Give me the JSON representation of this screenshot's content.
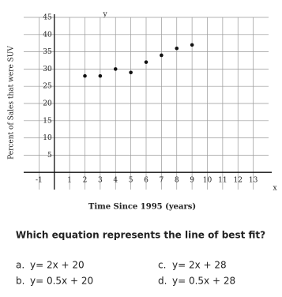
{
  "chart_data": {
    "type": "scatter",
    "x_label": "Time Since 1995 (years)",
    "y_label": "Percent of Sales that were SUV",
    "x_axis_name": "x",
    "y_axis_name": "y",
    "x": [
      2,
      3,
      4,
      5,
      6,
      7,
      8,
      9
    ],
    "values": [
      28,
      28,
      30,
      29,
      32,
      34,
      36,
      37
    ],
    "color": "#111",
    "xlim": [
      -2,
      14
    ],
    "ylim": [
      -5,
      45
    ],
    "xticks": [
      -1,
      1,
      2,
      3,
      4,
      5,
      6,
      7,
      8,
      9,
      10,
      11,
      12,
      13
    ],
    "yticks": [
      5,
      10,
      15,
      20,
      25,
      30,
      35,
      40,
      45
    ],
    "grid": true
  },
  "question": "Which equation represents the line of best fit?",
  "options": [
    {
      "letter": "a.",
      "text": "y= 2x + 20"
    },
    {
      "letter": "b.",
      "text": "y= 0.5x + 20"
    },
    {
      "letter": "c.",
      "text": "y= 2x + 28"
    },
    {
      "letter": "d.",
      "text": "y= 0.5x + 28"
    }
  ]
}
